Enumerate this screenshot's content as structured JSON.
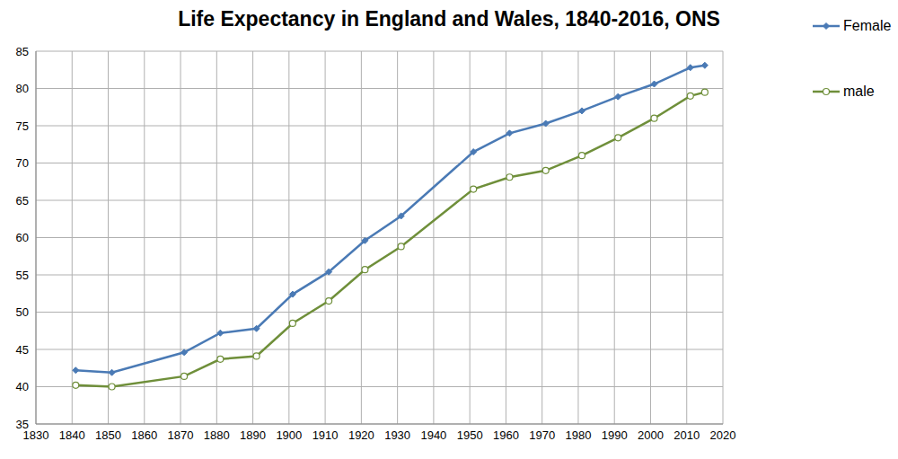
{
  "chart_data": {
    "type": "line",
    "title": "Life Expectancy in England and Wales, 1840-2016, ONS",
    "x": [
      1841,
      1851,
      1871,
      1881,
      1891,
      1901,
      1911,
      1921,
      1931,
      1951,
      1961,
      1971,
      1981,
      1991,
      2001,
      2011,
      2015
    ],
    "series": [
      {
        "name": "Female",
        "color": "#4a7ab5",
        "marker": "diamond",
        "values": [
          42.2,
          41.9,
          44.6,
          47.2,
          47.8,
          52.4,
          55.4,
          59.6,
          62.9,
          71.5,
          74.0,
          75.3,
          77.0,
          78.9,
          80.6,
          82.8,
          83.1
        ]
      },
      {
        "name": "male",
        "color": "#6f8f3a",
        "marker": "circle",
        "values": [
          40.2,
          40.0,
          41.4,
          43.7,
          44.1,
          48.5,
          51.5,
          55.7,
          58.8,
          66.5,
          68.1,
          69.0,
          71.0,
          73.4,
          76.0,
          79.0,
          79.5
        ]
      }
    ],
    "xlim": [
      1830,
      2020
    ],
    "xticks": [
      1830,
      1840,
      1850,
      1860,
      1870,
      1880,
      1890,
      1900,
      1910,
      1920,
      1930,
      1940,
      1950,
      1960,
      1970,
      1980,
      1990,
      2000,
      2010,
      2020
    ],
    "ylim": [
      35,
      85
    ],
    "yticks": [
      35,
      40,
      45,
      50,
      55,
      60,
      65,
      70,
      75,
      80,
      85
    ],
    "grid": true,
    "legend": "right"
  }
}
